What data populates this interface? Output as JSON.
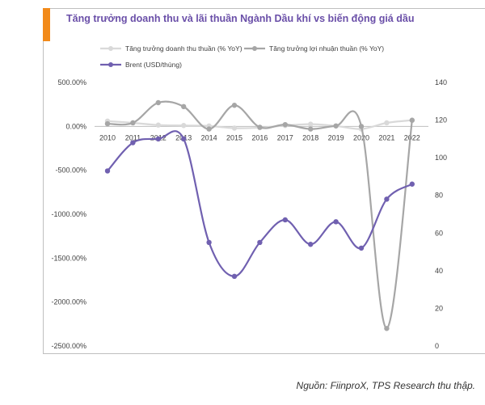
{
  "chart_data": {
    "type": "line",
    "title": "Tăng trưởng doanh thu và lãi thuần Ngành Dầu khí vs biến động giá dầu",
    "categories": [
      "2010",
      "2011",
      "2012",
      "2013",
      "2014",
      "2015",
      "2016",
      "2017",
      "2018",
      "2019",
      "2020",
      "2021",
      "2022"
    ],
    "y_left": {
      "min": -2500,
      "max": 500,
      "ticks": [
        500,
        0,
        -500,
        -1000,
        -1500,
        -2000,
        -2500
      ],
      "tick_labels": [
        "500.00%",
        "0.00%",
        "-500.00%",
        "-1000.00%",
        "-1500.00%",
        "-2000.00%",
        "-2500.00%"
      ]
    },
    "y_right": {
      "min": 0,
      "max": 140,
      "ticks": [
        140,
        120,
        100,
        80,
        60,
        40,
        20,
        0
      ],
      "tick_labels": [
        "140",
        "120",
        "100",
        "80",
        "60",
        "40",
        "20",
        "0"
      ]
    },
    "series": [
      {
        "name": "Tăng trưởng doanh thu thuần (% YoY)",
        "axis": "left",
        "color": "#d9d9d9",
        "values": [
          60,
          40,
          15,
          10,
          5,
          -20,
          -15,
          10,
          25,
          5,
          -30,
          40,
          70
        ]
      },
      {
        "name": "Tăng trưởng lợi nhuận thuần (% YoY)",
        "axis": "left",
        "color": "#a6a6a6",
        "values": [
          30,
          40,
          270,
          225,
          -30,
          240,
          -10,
          20,
          -30,
          5,
          0,
          -2300,
          70
        ]
      },
      {
        "name": "Brent (USD/thùng)",
        "axis": "right",
        "color": "#7060b0",
        "values": [
          93,
          108,
          110,
          110,
          55,
          37,
          55,
          67,
          54,
          66,
          52,
          78,
          86
        ]
      }
    ],
    "legend_position": "top",
    "grid": false
  },
  "header": {
    "title": "Tăng trưởng doanh thu và lãi thuần Ngành Dầu khí vs biến động giá dầu",
    "accent_color": "#f28a1a",
    "title_color": "#6a4fa8"
  },
  "footer": {
    "source": "Nguồn: FiinproX, TPS Research thu thập."
  }
}
